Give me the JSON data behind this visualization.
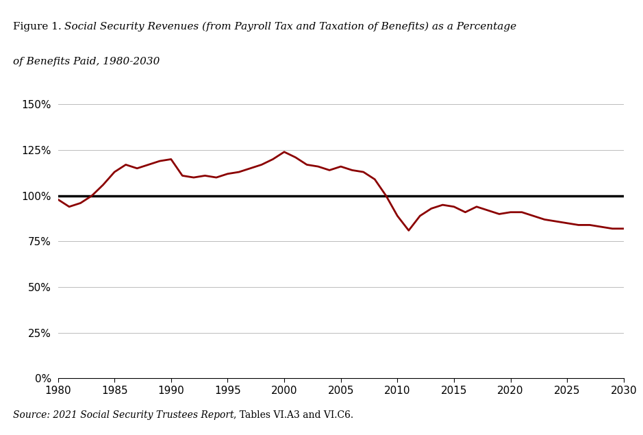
{
  "line_color": "#8B0000",
  "reference_line_color": "#000000",
  "background_color": "#ffffff",
  "grid_color": "#bbbbbb",
  "xlim": [
    1980,
    2030
  ],
  "ylim": [
    0,
    150
  ],
  "yticks": [
    0,
    25,
    50,
    75,
    100,
    125,
    150
  ],
  "xticks": [
    1980,
    1985,
    1990,
    1995,
    2000,
    2005,
    2010,
    2015,
    2020,
    2025,
    2030
  ],
  "years": [
    1980,
    1981,
    1982,
    1983,
    1984,
    1985,
    1986,
    1987,
    1988,
    1989,
    1990,
    1991,
    1992,
    1993,
    1994,
    1995,
    1996,
    1997,
    1998,
    1999,
    2000,
    2001,
    2002,
    2003,
    2004,
    2005,
    2006,
    2007,
    2008,
    2009,
    2010,
    2011,
    2012,
    2013,
    2014,
    2015,
    2016,
    2017,
    2018,
    2019,
    2020,
    2021,
    2022,
    2023,
    2024,
    2025,
    2026,
    2027,
    2028,
    2029,
    2030
  ],
  "values": [
    98,
    94,
    96,
    100,
    106,
    113,
    117,
    115,
    117,
    119,
    120,
    111,
    110,
    111,
    110,
    112,
    113,
    115,
    117,
    120,
    124,
    121,
    117,
    116,
    114,
    116,
    114,
    113,
    109,
    100,
    89,
    81,
    89,
    93,
    95,
    94,
    91,
    94,
    92,
    90,
    91,
    91,
    89,
    87,
    86,
    85,
    84,
    84,
    83,
    82,
    82
  ],
  "title_normal": "Figure 1. ",
  "title_italic_1": "Social Security Revenues (from Payroll Tax and Taxation of Benefits) as a Percentage",
  "title_italic_2": "of Benefits Paid, 1980-2030",
  "source_italic": "Source: 2021 Social Security Trustees Report",
  "source_normal": ", Tables VI.A3 and VI.C6.",
  "title_fontsize": 11,
  "tick_fontsize": 11,
  "source_fontsize": 10
}
